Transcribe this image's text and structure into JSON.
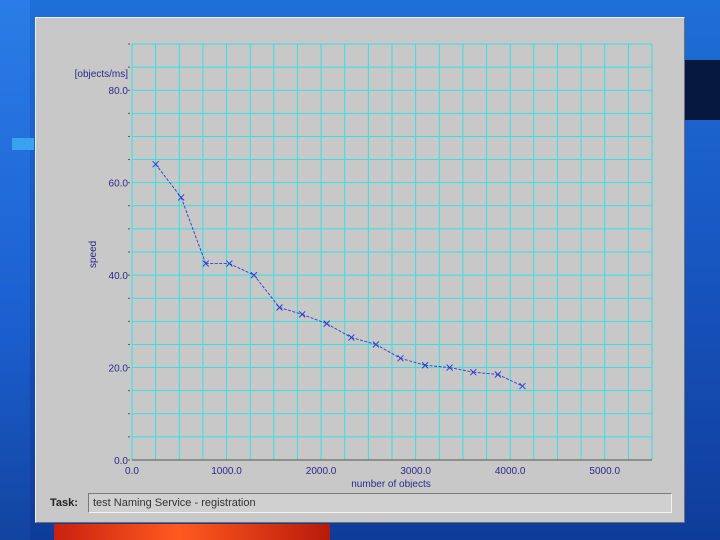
{
  "page": {
    "task_label": "Task:",
    "task_value": "test Naming Service - registration"
  },
  "chart_data": {
    "type": "line",
    "title": "",
    "xlabel": "number of objects",
    "ylabel": "speed",
    "yunits": "[objects/ms]",
    "xlim": [
      0,
      5500
    ],
    "ylim": [
      0,
      90
    ],
    "xticks": [
      "0.0",
      "1000.0",
      "2000.0",
      "3000.0",
      "4000.0",
      "5000.0"
    ],
    "xtick_values": [
      0,
      1000,
      2000,
      3000,
      4000,
      5000
    ],
    "yticks": [
      "0.0",
      "20.0",
      "40.0",
      "60.0",
      "80.0"
    ],
    "ytick_values": [
      0,
      20,
      40,
      60,
      80
    ],
    "grid": true,
    "colors": {
      "grid": "#35e0e0",
      "line": "#2a3fd0",
      "marker": "#2a3fd0",
      "text": "#2a2a8a"
    },
    "series": [
      {
        "points": [
          [
            250,
            64.0
          ],
          [
            520,
            56.8
          ],
          [
            780,
            42.5
          ],
          [
            1030,
            42.5
          ],
          [
            1290,
            40.0
          ],
          [
            1560,
            33.0
          ],
          [
            1800,
            31.5
          ],
          [
            2060,
            29.5
          ],
          [
            2320,
            26.5
          ],
          [
            2580,
            25.0
          ],
          [
            2840,
            22.0
          ],
          [
            3100,
            20.5
          ],
          [
            3360,
            20.0
          ],
          [
            3610,
            19.0
          ],
          [
            3870,
            18.5
          ],
          [
            4130,
            16.0
          ]
        ]
      }
    ]
  }
}
